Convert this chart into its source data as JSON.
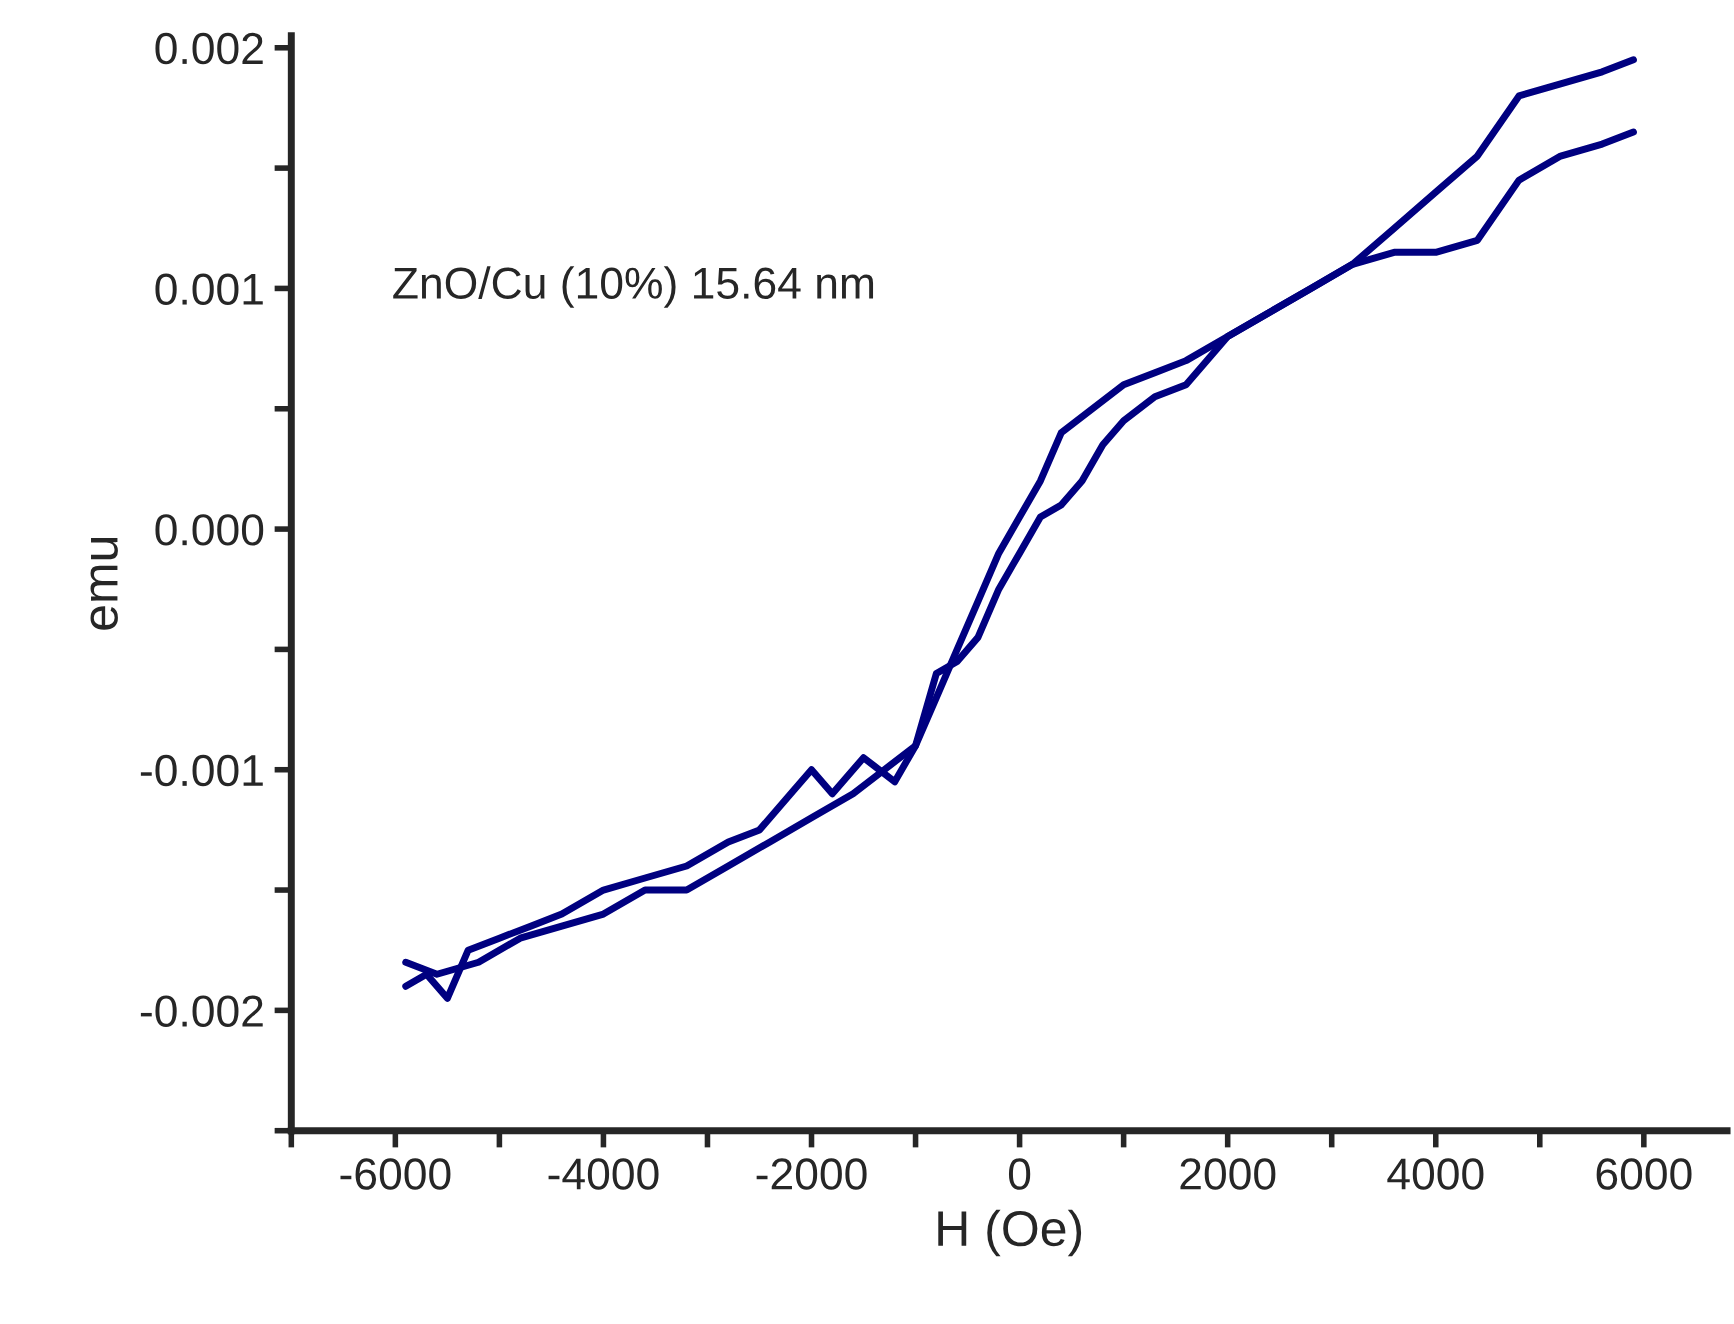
{
  "chart_data": {
    "type": "line",
    "xlabel": "H (Oe)",
    "ylabel": "emu",
    "annotations": [
      "ZnO/Cu (10%) 15.64 nm"
    ],
    "series": [
      {
        "color": "#000080",
        "x": [
          -5900,
          -5700,
          -5500,
          -5300,
          -5000,
          -4700,
          -4400,
          -4000,
          -3600,
          -3200,
          -2800,
          -2500,
          -2200,
          -2000,
          -1800,
          -1500,
          -1200,
          -1000,
          -800,
          -600,
          -400,
          -200,
          0,
          200,
          400,
          600,
          800,
          1000,
          1300,
          1600,
          2000,
          2400,
          2800,
          3200,
          3600,
          4000,
          4400,
          4800,
          5200,
          5600,
          5900
        ],
        "values": [
          -0.0019,
          -0.00185,
          -0.00195,
          -0.00175,
          -0.0017,
          -0.00165,
          -0.0016,
          -0.0015,
          -0.00145,
          -0.0014,
          -0.0013,
          -0.00125,
          -0.0011,
          -0.001,
          -0.0011,
          -0.00095,
          -0.00105,
          -0.0009,
          -0.0006,
          -0.00055,
          -0.00045,
          -0.00025,
          -0.0001,
          5e-05,
          0.0001,
          0.0002,
          0.00035,
          0.00045,
          0.00055,
          0.0006,
          0.0008,
          0.0009,
          0.001,
          0.0011,
          0.00115,
          0.00115,
          0.0012,
          0.00145,
          0.00155,
          0.0016,
          0.00165
        ]
      },
      {
        "color": "#000080",
        "x": [
          5900,
          5600,
          5200,
          4800,
          4400,
          4000,
          3600,
          3200,
          2800,
          2400,
          2000,
          1600,
          1300,
          1000,
          700,
          400,
          200,
          0,
          -200,
          -400,
          -600,
          -800,
          -1000,
          -1300,
          -1600,
          -2000,
          -2400,
          -2800,
          -3200,
          -3600,
          -4000,
          -4400,
          -4800,
          -5200,
          -5600,
          -5900
        ],
        "values": [
          0.00195,
          0.0019,
          0.00185,
          0.0018,
          0.00155,
          0.0014,
          0.00125,
          0.0011,
          0.001,
          0.0009,
          0.0008,
          0.0007,
          0.00065,
          0.0006,
          0.0005,
          0.0004,
          0.0002,
          5e-05,
          -0.0001,
          -0.0003,
          -0.0005,
          -0.0007,
          -0.0009,
          -0.001,
          -0.0011,
          -0.0012,
          -0.0013,
          -0.0014,
          -0.0015,
          -0.0015,
          -0.0016,
          -0.00165,
          -0.0017,
          -0.0018,
          -0.00185,
          -0.0018
        ]
      }
    ],
    "xlim": [
      -7000,
      6800
    ],
    "xticks": [
      {
        "value": -7000,
        "label": null
      },
      {
        "value": -6000,
        "label": "-6000"
      },
      {
        "value": -5000,
        "label": null
      },
      {
        "value": -4000,
        "label": "-4000"
      },
      {
        "value": -3000,
        "label": null
      },
      {
        "value": -2000,
        "label": "-2000"
      },
      {
        "value": -1000,
        "label": null
      },
      0,
      {
        "value": 1000,
        "label": null
      },
      2000,
      {
        "value": 3000,
        "label": null
      },
      4000,
      {
        "value": 5000,
        "label": null
      },
      6000
    ],
    "ylim": [
      -0.0025,
      0.00205
    ],
    "yticks": [
      {
        "value": -0.0025,
        "label": null
      },
      {
        "value": -0.002,
        "label": "-0.002"
      },
      {
        "value": -0.0015,
        "label": null
      },
      {
        "value": -0.001,
        "label": "-0.001"
      },
      {
        "value": -0.0005,
        "label": null
      },
      {
        "value": 0,
        "label": "0.000"
      },
      {
        "value": 0.0005,
        "label": null
      },
      {
        "value": 0.001,
        "label": "0.001"
      },
      {
        "value": 0.0015,
        "label": null
      },
      {
        "value": 0.002,
        "label": "0.002"
      }
    ],
    "grid": false,
    "legend": false,
    "marker": "none",
    "line_style": "solid"
  }
}
